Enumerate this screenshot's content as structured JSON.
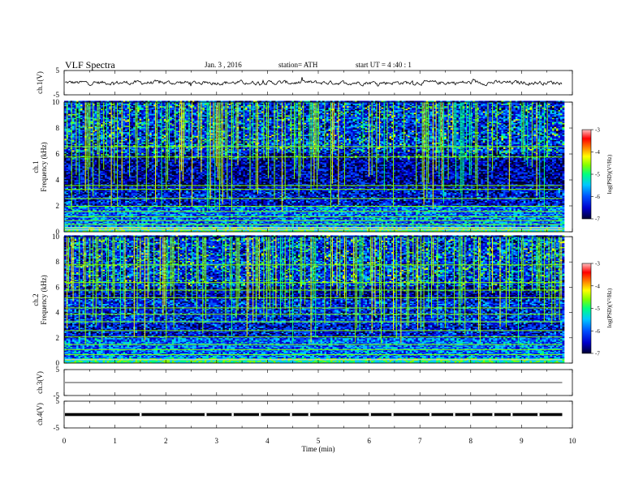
{
  "header": {
    "title": "VLF  Spectra",
    "date": "Jan. 3  , 2016",
    "station": "station= ATH",
    "start": "start  UT  =   4  :40 : 1"
  },
  "chart_data": [
    {
      "id": "ch1-waveform",
      "type": "line",
      "ylabel": "ch.1(V)",
      "ylim": [
        -5,
        5
      ],
      "ytick_labels": [
        "5",
        "-5"
      ],
      "xlim": [
        0,
        10
      ],
      "data_extent_min": 9.8,
      "baseline": 0.0,
      "color": "#000000"
    },
    {
      "id": "ch1-spectrogram",
      "type": "heatmap",
      "ylabel_top": "ch.1",
      "ylabel": "Frequency (kHz)",
      "ylim": [
        0,
        10
      ],
      "ytick_labels": [
        "0",
        "2",
        "4",
        "6",
        "8",
        "10"
      ],
      "xlim": [
        0,
        10
      ],
      "colorbar": {
        "label": "log(PSD)(V²/Hz)",
        "range": [
          -7,
          -3
        ],
        "tick_labels": [
          "-3",
          "-4",
          "-5",
          "-6",
          "-7"
        ],
        "colors": [
          "#000033",
          "#0000cc",
          "#0050ff",
          "#00c8ff",
          "#00ff80",
          "#80ff00",
          "#ffff00",
          "#ff8000",
          "#ff0000",
          "#ffc0c0"
        ]
      }
    },
    {
      "id": "ch2-spectrogram",
      "type": "heatmap",
      "ylabel_top": "ch.2",
      "ylabel": "Frequency (kHz)",
      "ylim": [
        0,
        10
      ],
      "ytick_labels": [
        "0",
        "2",
        "4",
        "6",
        "8",
        "10"
      ],
      "xlim": [
        0,
        10
      ],
      "colorbar": {
        "label": "log(PSD)(V²/Hz)",
        "range": [
          -7,
          -3
        ],
        "tick_labels": [
          "-3",
          "-4",
          "-5",
          "-6",
          "-7"
        ],
        "colors": [
          "#000033",
          "#0000cc",
          "#0050ff",
          "#00c8ff",
          "#00ff80",
          "#80ff00",
          "#ffff00",
          "#ff8000",
          "#ff0000",
          "#ffc0c0"
        ]
      }
    },
    {
      "id": "ch3-waveform",
      "type": "line",
      "ylabel": "ch.3(V)",
      "ylim": [
        -5,
        5
      ],
      "ytick_labels": [
        "5",
        "-5"
      ],
      "xlim": [
        0,
        10
      ],
      "data_extent_min": 9.8,
      "baseline": 0.0,
      "color": "#000000"
    },
    {
      "id": "ch4-waveform",
      "type": "line",
      "ylabel": "ch.4(V)",
      "ylim": [
        -5,
        5
      ],
      "ytick_labels": [
        "5",
        "-5"
      ],
      "xlim": [
        0,
        10
      ],
      "data_extent_min": 9.8,
      "baseline": 0.0,
      "color": "#000000"
    }
  ],
  "x_axis": {
    "label": "Time  (min)",
    "tick_labels": [
      "0",
      "1",
      "2",
      "3",
      "4",
      "5",
      "6",
      "7",
      "8",
      "9",
      "10"
    ]
  }
}
